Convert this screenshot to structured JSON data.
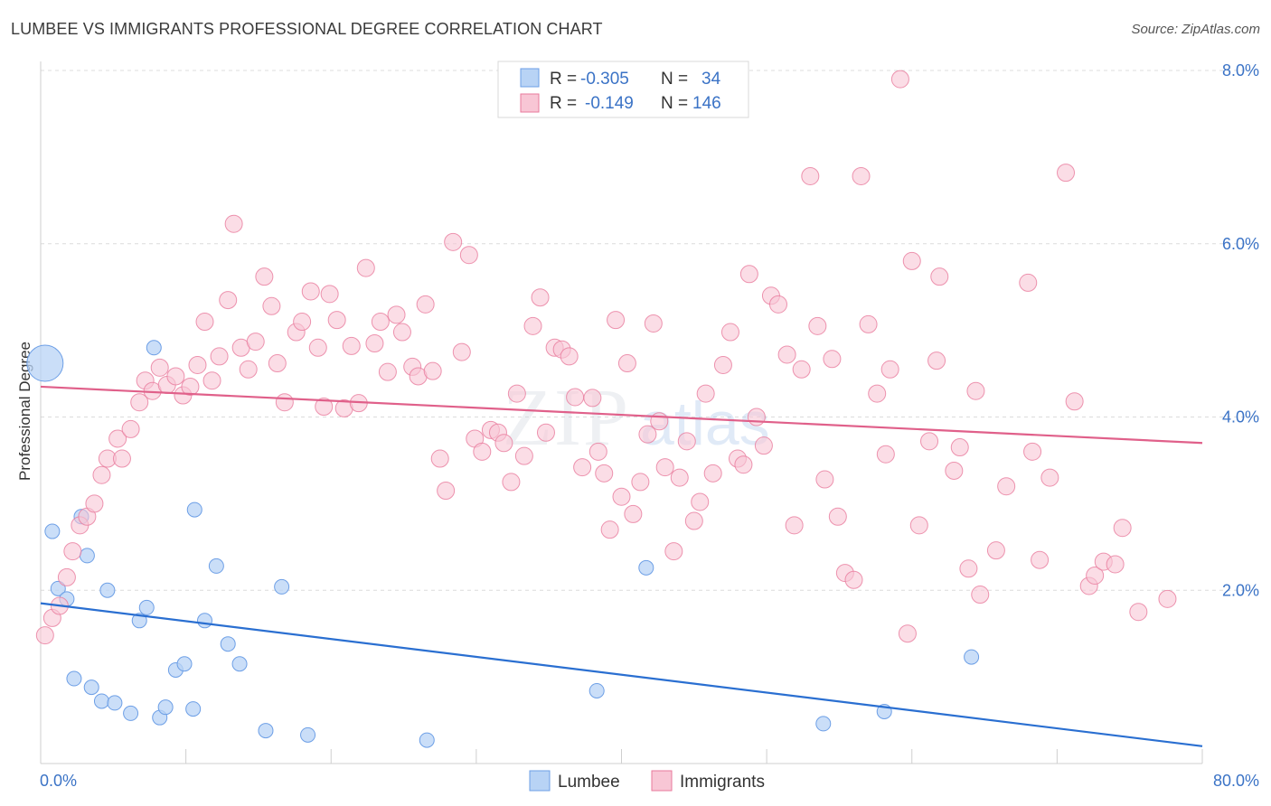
{
  "title": "LUMBEE VS IMMIGRANTS PROFESSIONAL DEGREE CORRELATION CHART",
  "source": "Source: ZipAtlas.com",
  "colors": {
    "lumbee": "#6d9fe6",
    "lumbee_fill": "#b8d3f5",
    "lumbee_line": "#2a6fd1",
    "immigrants": "#e97a9c",
    "immigrants_fill": "#f8c6d5",
    "immigrants_line": "#e0608a",
    "axis_text": "#3b73c6"
  },
  "legend_top": [
    {
      "series": "Lumbee",
      "r_label": "R =",
      "r_value": "-0.305",
      "n_label": "N =",
      "n_value": "34"
    },
    {
      "series": "Immigrants",
      "r_label": "R =",
      "r_value": "-0.149",
      "n_label": "N =",
      "n_value": "146"
    }
  ],
  "chart_data": {
    "type": "scatter",
    "title": "LUMBEE VS IMMIGRANTS PROFESSIONAL DEGREE CORRELATION CHART",
    "xlabel": "",
    "ylabel": "Professional Degree",
    "xlim": [
      0,
      80
    ],
    "ylim": [
      0,
      8.0
    ],
    "x_tick_labels": [
      "0.0%",
      "80.0%"
    ],
    "y_ticks": [
      2.0,
      4.0,
      6.0,
      8.0
    ],
    "y_tick_labels": [
      "2.0%",
      "4.0%",
      "6.0%",
      "8.0%"
    ],
    "grid": true,
    "legend_bottom": [
      "Lumbee",
      "Immigrants"
    ],
    "watermark": "ZIPatlas",
    "series": [
      {
        "name": "Lumbee",
        "trend": {
          "x": [
            0,
            80
          ],
          "y": [
            1.85,
            0.2
          ]
        },
        "points": [
          [
            0.3,
            4.62,
            "large"
          ],
          [
            0.8,
            2.68
          ],
          [
            1.2,
            2.02
          ],
          [
            1.8,
            1.9
          ],
          [
            2.3,
            0.98
          ],
          [
            2.8,
            2.85
          ],
          [
            3.2,
            2.4
          ],
          [
            3.5,
            0.88
          ],
          [
            4.2,
            0.72
          ],
          [
            4.6,
            2.0
          ],
          [
            5.1,
            0.7
          ],
          [
            6.2,
            0.58
          ],
          [
            6.8,
            1.65
          ],
          [
            7.3,
            1.8
          ],
          [
            7.8,
            4.8
          ],
          [
            8.2,
            0.53
          ],
          [
            8.6,
            0.65
          ],
          [
            9.3,
            1.08
          ],
          [
            9.9,
            1.15
          ],
          [
            10.5,
            0.63
          ],
          [
            10.6,
            2.93
          ],
          [
            11.3,
            1.65
          ],
          [
            12.1,
            2.28
          ],
          [
            12.9,
            1.38
          ],
          [
            13.7,
            1.15
          ],
          [
            15.5,
            0.38
          ],
          [
            16.6,
            2.04
          ],
          [
            18.4,
            0.33
          ],
          [
            26.6,
            0.27
          ],
          [
            38.3,
            0.84
          ],
          [
            41.7,
            2.26
          ],
          [
            53.9,
            0.46
          ],
          [
            58.1,
            0.6
          ],
          [
            64.1,
            1.23
          ]
        ]
      },
      {
        "name": "Immigrants",
        "trend": {
          "x": [
            0,
            80
          ],
          "y": [
            4.35,
            3.7
          ]
        },
        "points": [
          [
            0.3,
            1.48
          ],
          [
            0.8,
            1.68
          ],
          [
            1.3,
            1.82
          ],
          [
            1.8,
            2.15
          ],
          [
            2.2,
            2.45
          ],
          [
            2.7,
            2.75
          ],
          [
            3.2,
            2.85
          ],
          [
            3.7,
            3.0
          ],
          [
            4.2,
            3.33
          ],
          [
            4.6,
            3.52
          ],
          [
            5.3,
            3.75
          ],
          [
            5.6,
            3.52
          ],
          [
            6.2,
            3.86
          ],
          [
            6.8,
            4.17
          ],
          [
            7.2,
            4.42
          ],
          [
            7.7,
            4.3
          ],
          [
            8.2,
            4.57
          ],
          [
            8.7,
            4.37
          ],
          [
            9.3,
            4.47
          ],
          [
            9.8,
            4.25
          ],
          [
            10.3,
            4.35
          ],
          [
            10.8,
            4.6
          ],
          [
            11.3,
            5.1
          ],
          [
            11.8,
            4.42
          ],
          [
            12.3,
            4.7
          ],
          [
            12.9,
            5.35
          ],
          [
            13.3,
            6.23
          ],
          [
            13.8,
            4.8
          ],
          [
            14.3,
            4.55
          ],
          [
            14.8,
            4.87
          ],
          [
            15.4,
            5.62
          ],
          [
            15.9,
            5.28
          ],
          [
            16.3,
            4.62
          ],
          [
            16.8,
            4.17
          ],
          [
            17.6,
            4.98
          ],
          [
            18.0,
            5.1
          ],
          [
            18.6,
            5.45
          ],
          [
            19.1,
            4.8
          ],
          [
            19.5,
            4.12
          ],
          [
            19.9,
            5.42
          ],
          [
            20.4,
            5.12
          ],
          [
            20.9,
            4.1
          ],
          [
            21.4,
            4.82
          ],
          [
            21.9,
            4.16
          ],
          [
            22.4,
            5.72
          ],
          [
            23.0,
            4.85
          ],
          [
            23.4,
            5.1
          ],
          [
            23.9,
            4.52
          ],
          [
            24.5,
            5.18
          ],
          [
            24.9,
            4.98
          ],
          [
            25.6,
            4.58
          ],
          [
            26.0,
            4.47
          ],
          [
            26.5,
            5.3
          ],
          [
            27.0,
            4.53
          ],
          [
            27.5,
            3.52
          ],
          [
            27.9,
            3.15
          ],
          [
            28.4,
            6.02
          ],
          [
            29.0,
            4.75
          ],
          [
            29.5,
            5.87
          ],
          [
            29.9,
            3.75
          ],
          [
            30.4,
            3.6
          ],
          [
            31.0,
            3.85
          ],
          [
            31.5,
            3.82
          ],
          [
            31.9,
            3.7
          ],
          [
            32.4,
            3.25
          ],
          [
            32.8,
            4.27
          ],
          [
            33.3,
            3.55
          ],
          [
            33.9,
            5.05
          ],
          [
            34.4,
            5.38
          ],
          [
            34.8,
            3.82
          ],
          [
            35.4,
            4.8
          ],
          [
            35.9,
            4.78
          ],
          [
            36.4,
            4.7
          ],
          [
            36.8,
            4.23
          ],
          [
            37.3,
            3.42
          ],
          [
            38.0,
            4.22
          ],
          [
            38.4,
            3.6
          ],
          [
            38.8,
            3.35
          ],
          [
            39.2,
            2.7
          ],
          [
            39.6,
            5.12
          ],
          [
            40.0,
            3.08
          ],
          [
            40.4,
            4.62
          ],
          [
            40.8,
            2.88
          ],
          [
            41.3,
            3.25
          ],
          [
            41.8,
            3.8
          ],
          [
            42.2,
            5.08
          ],
          [
            42.6,
            3.95
          ],
          [
            43.0,
            3.42
          ],
          [
            43.6,
            2.45
          ],
          [
            44.0,
            3.3
          ],
          [
            44.5,
            3.72
          ],
          [
            45.0,
            2.8
          ],
          [
            45.4,
            3.02
          ],
          [
            45.8,
            4.27
          ],
          [
            46.3,
            3.35
          ],
          [
            47.0,
            4.6
          ],
          [
            47.5,
            4.98
          ],
          [
            48.0,
            3.52
          ],
          [
            48.4,
            3.45
          ],
          [
            48.8,
            5.65
          ],
          [
            49.3,
            4.0
          ],
          [
            49.8,
            3.67
          ],
          [
            50.3,
            5.4
          ],
          [
            50.8,
            5.3
          ],
          [
            51.4,
            4.72
          ],
          [
            51.9,
            2.75
          ],
          [
            52.4,
            4.55
          ],
          [
            53.0,
            6.78
          ],
          [
            53.5,
            5.05
          ],
          [
            54.0,
            3.28
          ],
          [
            54.5,
            4.67
          ],
          [
            54.9,
            2.85
          ],
          [
            55.4,
            2.2
          ],
          [
            56.0,
            2.12
          ],
          [
            56.5,
            6.78
          ],
          [
            57.0,
            5.07
          ],
          [
            57.6,
            4.27
          ],
          [
            58.2,
            3.57
          ],
          [
            58.5,
            4.55
          ],
          [
            59.2,
            7.9
          ],
          [
            59.7,
            1.5
          ],
          [
            60.0,
            5.8
          ],
          [
            60.5,
            2.75
          ],
          [
            61.2,
            3.72
          ],
          [
            61.7,
            4.65
          ],
          [
            61.9,
            5.62
          ],
          [
            62.9,
            3.38
          ],
          [
            63.3,
            3.65
          ],
          [
            63.9,
            2.25
          ],
          [
            64.4,
            4.3
          ],
          [
            64.7,
            1.95
          ],
          [
            65.8,
            2.46
          ],
          [
            66.5,
            3.2
          ],
          [
            68.0,
            5.55
          ],
          [
            68.3,
            3.6
          ],
          [
            68.8,
            2.35
          ],
          [
            69.5,
            3.3
          ],
          [
            70.6,
            6.82
          ],
          [
            71.2,
            4.18
          ],
          [
            72.2,
            2.05
          ],
          [
            72.6,
            2.17
          ],
          [
            73.2,
            2.33
          ],
          [
            74.0,
            2.3
          ],
          [
            74.5,
            2.72
          ],
          [
            75.6,
            1.75
          ],
          [
            77.6,
            1.9
          ]
        ]
      }
    ]
  }
}
